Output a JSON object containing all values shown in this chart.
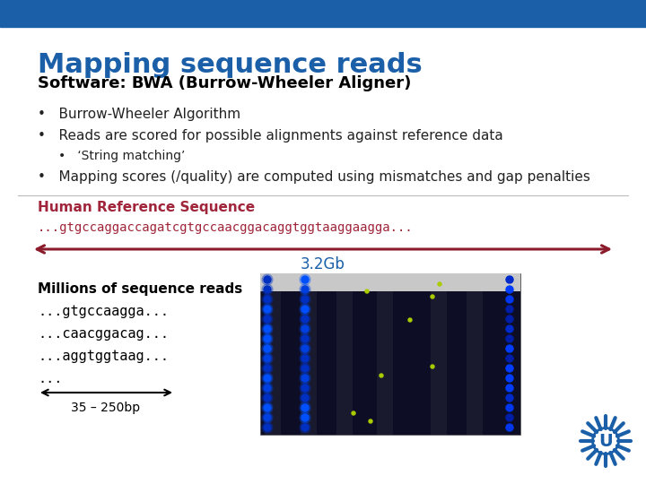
{
  "bg_color": "#ffffff",
  "top_bar_color": "#1a5fa8",
  "title": "Mapping sequence reads",
  "title_color": "#1a5fa8",
  "title_fontsize": 22,
  "subtitle": "Software: BWA (Burrow-Wheeler Aligner)",
  "subtitle_color": "#000000",
  "subtitle_fontsize": 13,
  "bullet_color": "#222222",
  "hr_label": "Human Reference Sequence",
  "hr_label_color": "#a0253a",
  "hr_seq": "...gtgccaggaccagatcgtgccaacggacaggtggtaaggaagga...",
  "hr_seq_color": "#a0253a",
  "arrow_color": "#8b1a2a",
  "arrow_label": "3.2Gb",
  "arrow_label_color": "#1a5fa8",
  "reads_label": "Millions of sequence reads",
  "reads": [
    "...gtgccaagga...",
    "...caacggacag...",
    "...aggtggtaag..."
  ],
  "reads_color": "#000000",
  "reads_dots": "...",
  "reads_arrow_label": "35 – 250bp",
  "logo_color": "#1a5fa8"
}
